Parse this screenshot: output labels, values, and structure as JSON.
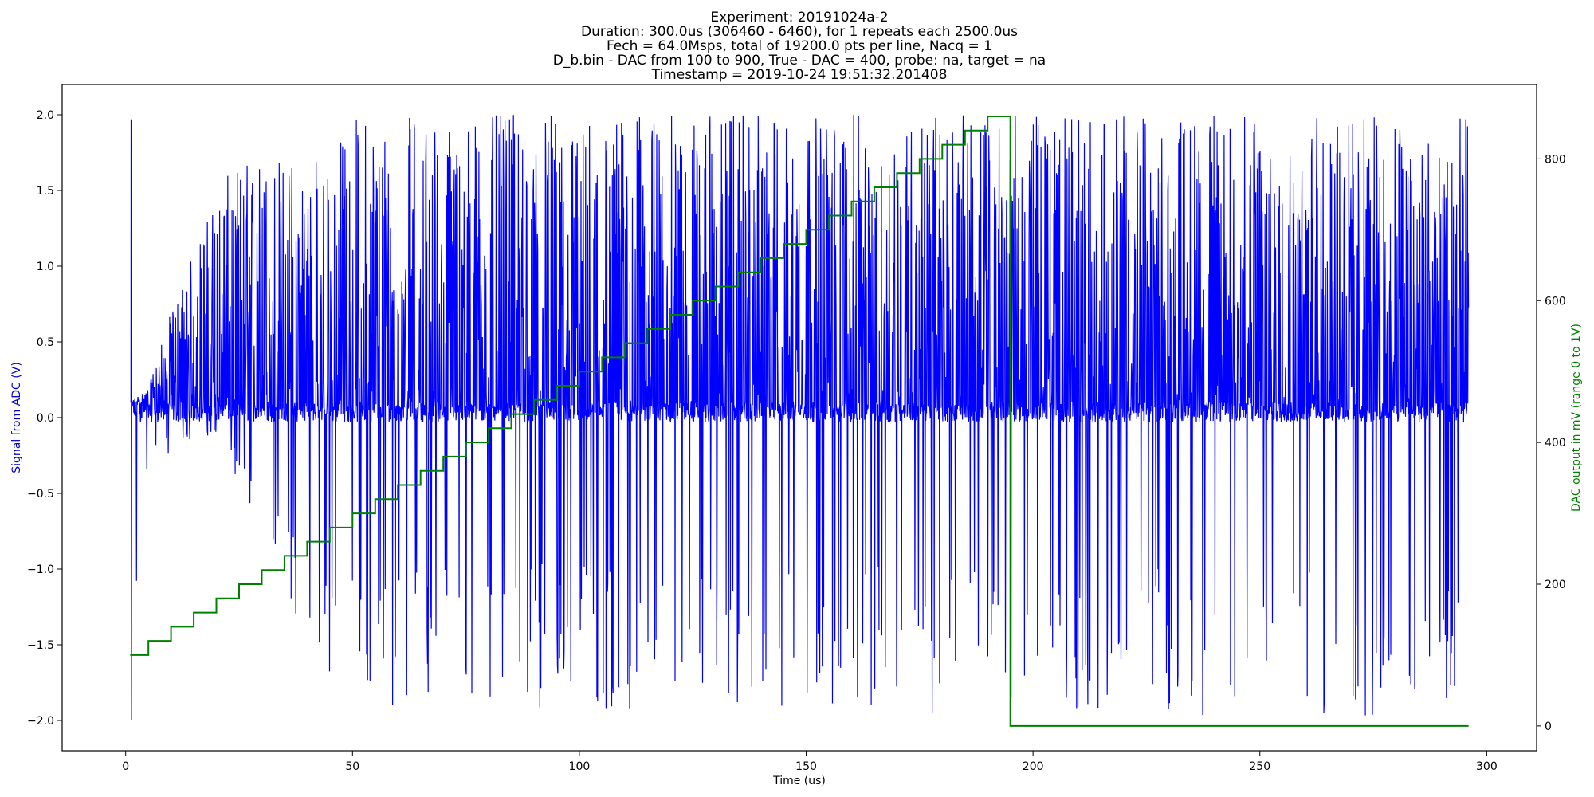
{
  "chart_data": {
    "type": "line",
    "title_lines": [
      "Experiment: 20191024a-2",
      "Duration: 300.0us (306460 - 6460), for 1 repeats each 2500.0us",
      "Fech = 64.0Msps, total of 19200.0 pts per line, Nacq = 1",
      "D_b.bin - DAC from 100 to 900, True - DAC = 400, probe: na, target = na",
      "Timestamp = 2019-10-24 19:51:32.201408"
    ],
    "xlabel": "Time (us)",
    "ylabel_left": "Signal from ADC (V)",
    "ylabel_right": "DAC output in mV (range 0 to 1V)",
    "xlim": [
      -14,
      311
    ],
    "ylim_left": [
      -2.2,
      2.2
    ],
    "ylim_right": [
      -35,
      905
    ],
    "x_ticks": [
      0,
      50,
      100,
      150,
      200,
      250,
      300
    ],
    "x_tick_labels": [
      "0",
      "50",
      "100",
      "150",
      "200",
      "250",
      "300"
    ],
    "y_left_ticks": [
      -2.0,
      -1.5,
      -1.0,
      -0.5,
      0.0,
      0.5,
      1.0,
      1.5,
      2.0
    ],
    "y_left_tick_labels": [
      "−2.0",
      "−1.5",
      "−1.0",
      "−0.5",
      "0.0",
      "0.5",
      "1.0",
      "1.5",
      "2.0"
    ],
    "y_right_ticks": [
      0,
      200,
      400,
      600,
      800
    ],
    "y_right_tick_labels": [
      "0",
      "200",
      "400",
      "600",
      "800"
    ],
    "grid": false,
    "series": [
      {
        "axis": "left",
        "color": "#0000ff",
        "x_range": [
          1,
          296
        ],
        "baseline_range": [
          -0.03,
          0.1
        ],
        "note_envelope_max": [
          [
            1,
            0.1
          ],
          [
            5,
            0.2
          ],
          [
            10,
            0.7
          ],
          [
            15,
            1.1
          ],
          [
            20,
            1.5
          ],
          [
            25,
            1.7
          ],
          [
            30,
            1.75
          ],
          [
            40,
            1.75
          ],
          [
            45,
            1.75
          ],
          [
            50,
            2.0
          ],
          [
            296,
            2.0
          ]
        ],
        "note_envelope_min": [
          [
            1,
            -2.0
          ],
          [
            5,
            -0.3
          ],
          [
            20,
            -0.1
          ],
          [
            45,
            -1.9
          ],
          [
            50,
            -1.9
          ],
          [
            296,
            -2.0
          ]
        ]
      },
      {
        "axis": "right",
        "color": "#008000",
        "steps": [
          [
            1,
            100
          ],
          [
            5,
            120
          ],
          [
            10,
            140
          ],
          [
            15,
            160
          ],
          [
            20,
            180
          ],
          [
            25,
            200
          ],
          [
            30,
            220
          ],
          [
            35,
            240
          ],
          [
            40,
            260
          ],
          [
            45,
            280
          ],
          [
            50,
            300
          ],
          [
            55,
            320
          ],
          [
            60,
            340
          ],
          [
            65,
            360
          ],
          [
            70,
            380
          ],
          [
            75,
            400
          ],
          [
            80,
            420
          ],
          [
            85,
            440
          ],
          [
            90,
            460
          ],
          [
            95,
            480
          ],
          [
            100,
            500
          ],
          [
            105,
            520
          ],
          [
            110,
            540
          ],
          [
            115,
            560
          ],
          [
            120,
            580
          ],
          [
            125,
            600
          ],
          [
            130,
            620
          ],
          [
            135,
            640
          ],
          [
            140,
            660
          ],
          [
            145,
            680
          ],
          [
            150,
            700
          ],
          [
            155,
            720
          ],
          [
            160,
            740
          ],
          [
            165,
            760
          ],
          [
            170,
            780
          ],
          [
            175,
            800
          ],
          [
            180,
            820
          ],
          [
            185,
            840
          ],
          [
            190,
            860
          ],
          [
            195,
            0
          ]
        ],
        "x_end": 296
      }
    ],
    "colors": {
      "adc_line": "#0000ff",
      "dac_line": "#008000",
      "left_axis_label": "#0000cc",
      "right_axis_label": "#008000"
    }
  }
}
